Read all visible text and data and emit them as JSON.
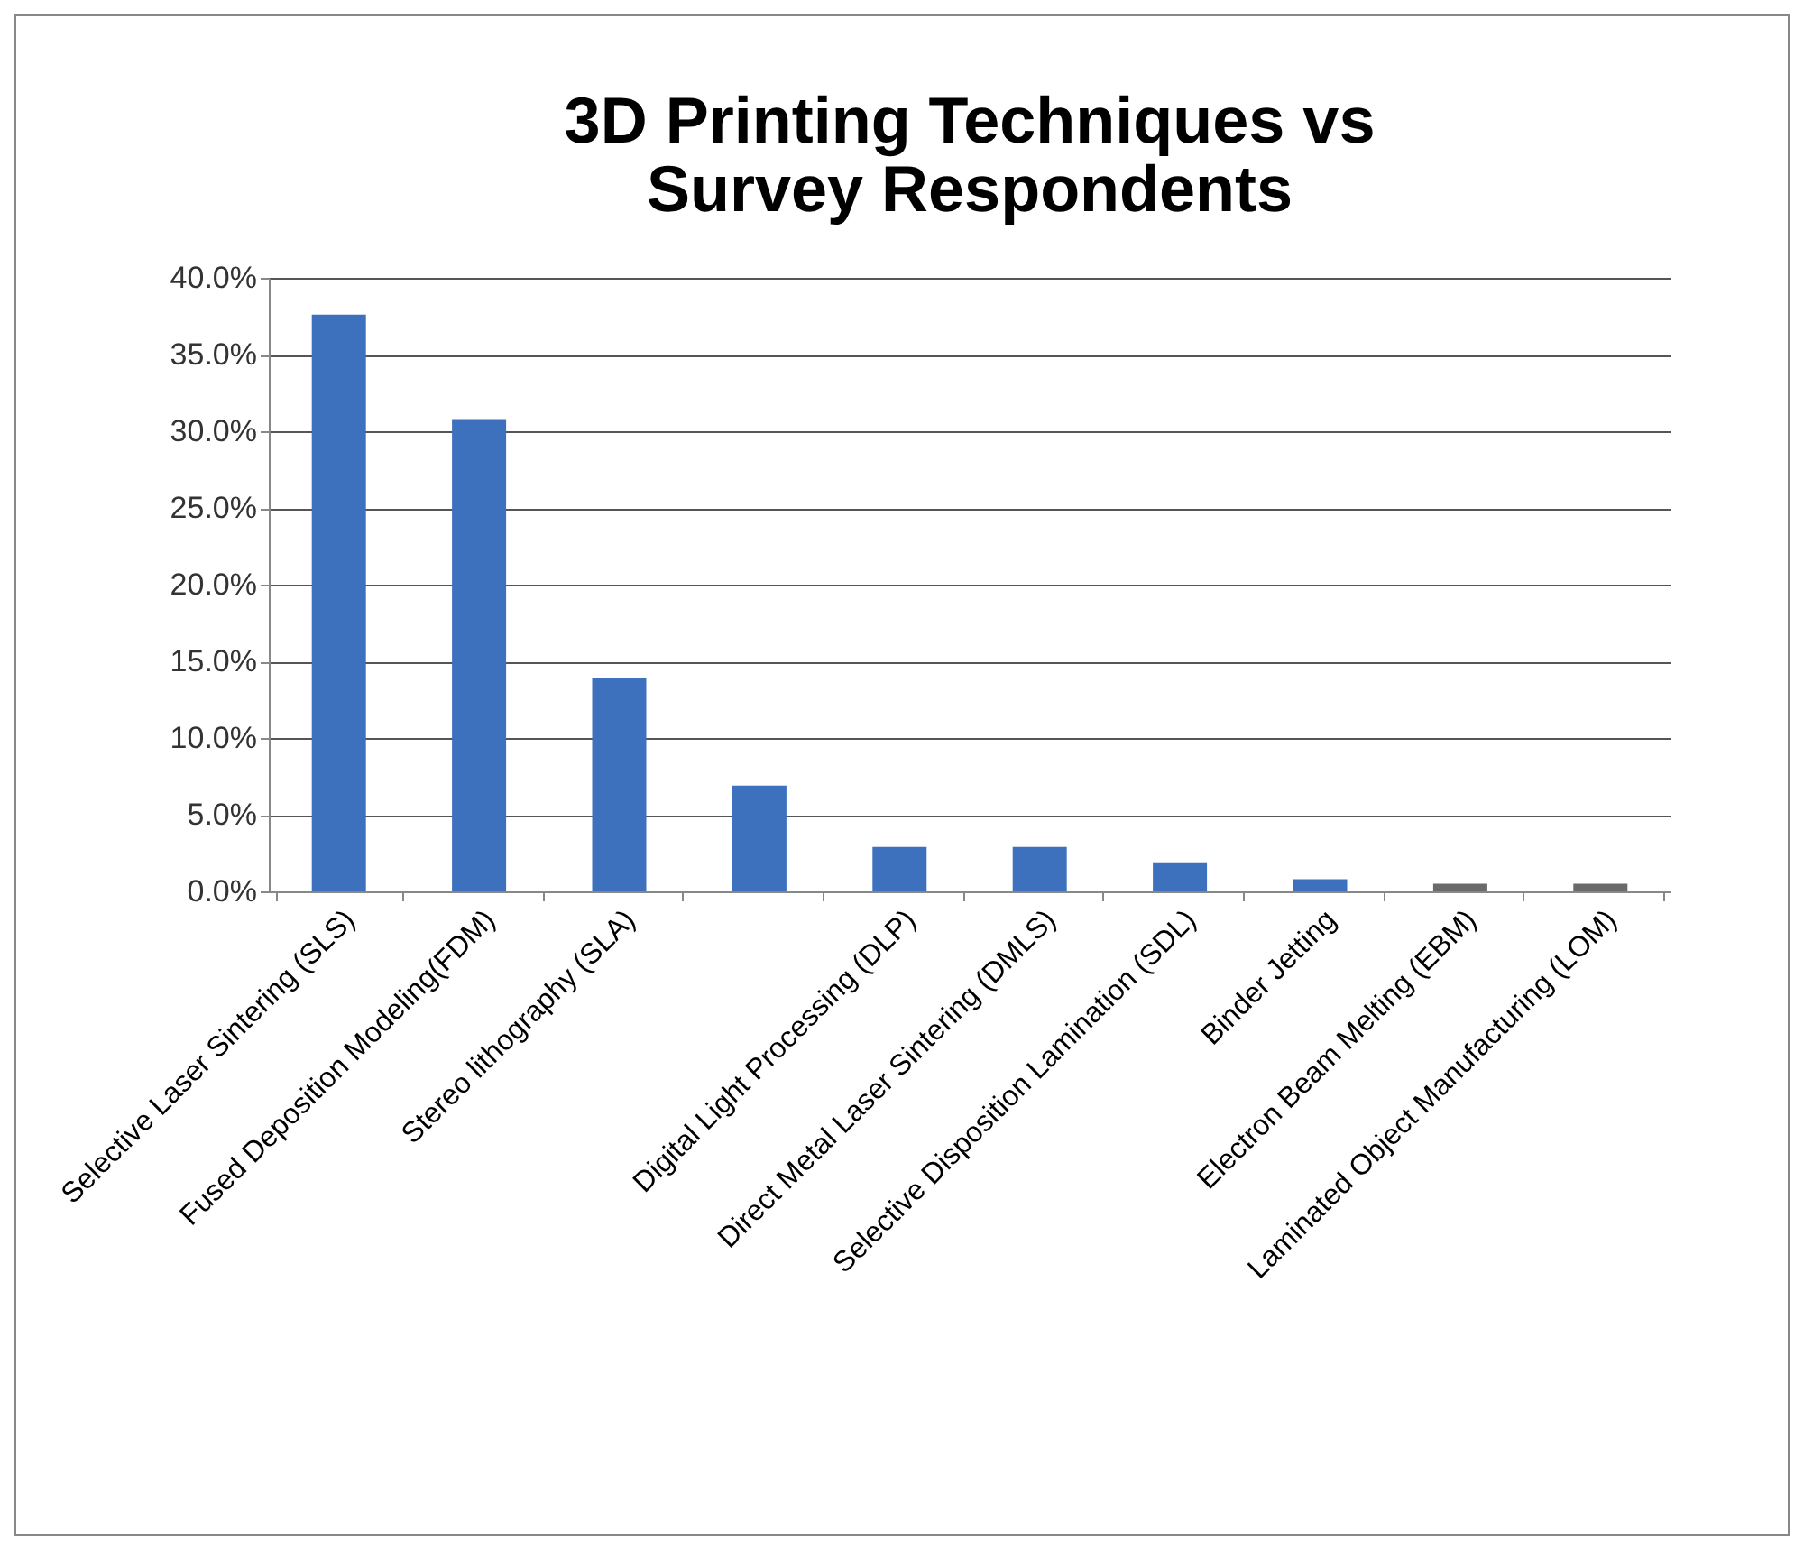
{
  "chart_data": {
    "type": "bar",
    "title": "3D Printing Techniques vs Survey Respondents",
    "categories": [
      "Selective Laser Sintering (SLS)",
      "Fused Deposition Modeling(FDM)",
      "Stereo lithography (SLA)",
      null,
      "Digital Light Processing (DLP)",
      "Direct Metal Laser Sintering (DMLS)",
      "Selective Disposition Lamination (SDL)",
      "Binder Jetting",
      "Electron Beam Melting (EBM)",
      "Laminated Object Manufacturing (LOM)"
    ],
    "values": [
      37.6,
      30.8,
      13.9,
      6.9,
      2.9,
      2.9,
      1.9,
      0.8,
      0.5,
      0.5
    ],
    "colors": [
      "#3d71bd",
      "#3d71bd",
      "#3d71bd",
      "#3d71bd",
      "#3d71bd",
      "#3d71bd",
      "#3d71bd",
      "#3d71bd",
      "#6a6a6a",
      "#6a6a6a"
    ],
    "ylim": [
      0,
      40
    ],
    "yticks": [
      {
        "value": 0,
        "label": "0.0%"
      },
      {
        "value": 5,
        "label": "5.0%"
      },
      {
        "value": 10,
        "label": "10.0%"
      },
      {
        "value": 15,
        "label": "15.0%"
      },
      {
        "value": 20,
        "label": "20.0%"
      },
      {
        "value": 25,
        "label": "25.0%"
      },
      {
        "value": 30,
        "label": "30.0%"
      },
      {
        "value": 35,
        "label": "35.0%"
      },
      {
        "value": 40,
        "label": "40.0%"
      }
    ],
    "grid": "y"
  }
}
